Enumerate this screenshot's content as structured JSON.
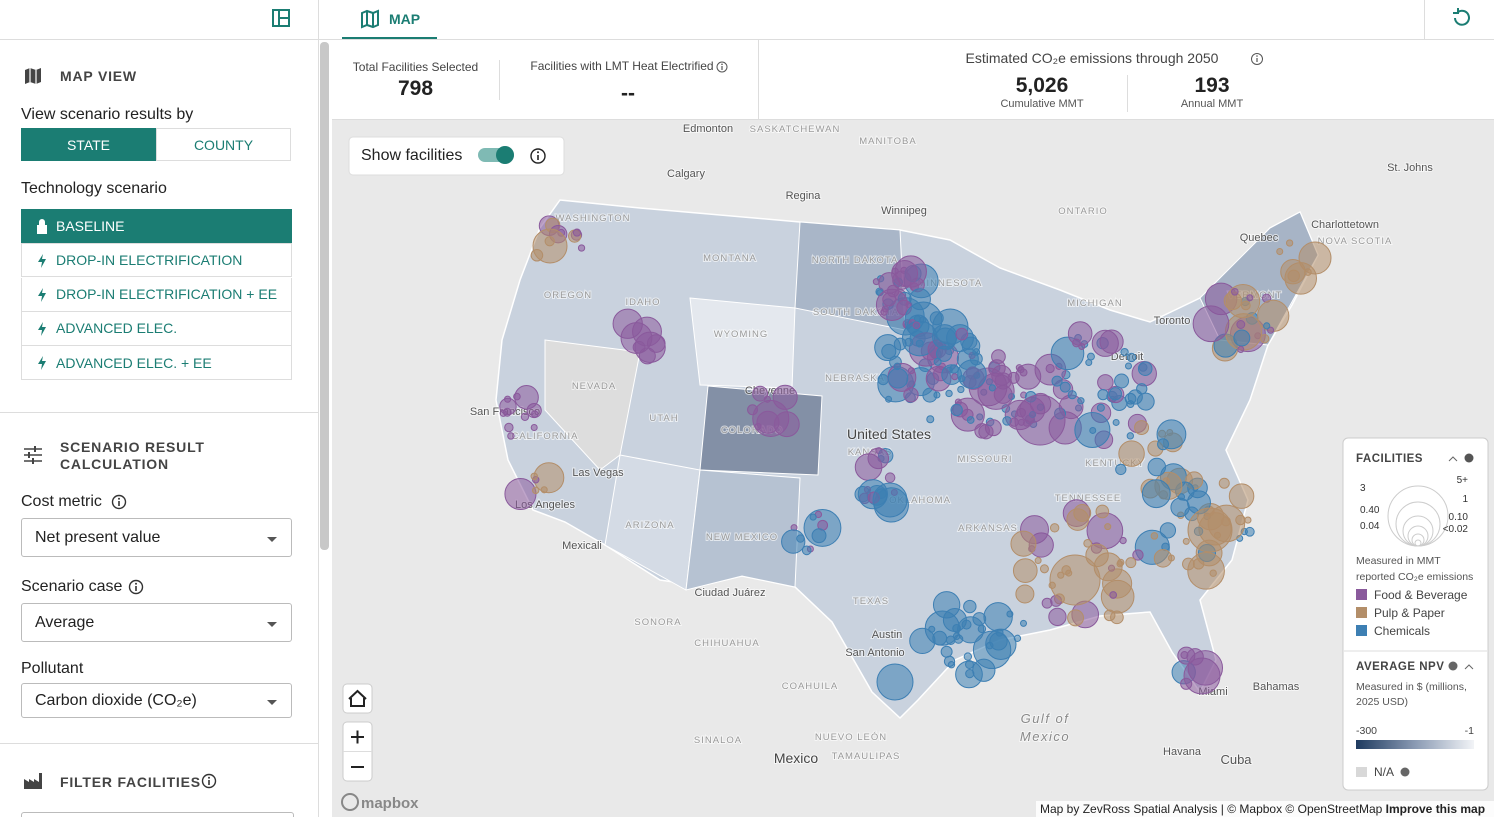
{
  "header": {
    "tab": "MAP"
  },
  "sidebar": {
    "map_view": {
      "title": "MAP VIEW",
      "view_by_label": "View scenario results by",
      "view_options": [
        "STATE",
        "COUNTY"
      ],
      "tech_label": "Technology scenario",
      "tech_options": [
        "BASELINE",
        "DROP-IN ELECTRIFICATION",
        "DROP-IN ELECTRIFICATION + EE",
        "ADVANCED ELEC.",
        "ADVANCED ELEC. + EE"
      ]
    },
    "calc": {
      "title": [
        "SCENARIO RESULT",
        "CALCULATION"
      ],
      "fields": [
        {
          "label": "Cost metric",
          "value": "Net present value"
        },
        {
          "label": "Scenario case",
          "value": "Average"
        },
        {
          "label": "Pollutant",
          "value": "Carbon dioxide (CO₂e)"
        }
      ]
    },
    "filter": {
      "title": "FILTER FACILITIES"
    }
  },
  "stats": {
    "total_label": "Total Facilities Selected",
    "total_value": "798",
    "lmt_label": "Facilities with LMT Heat Electrified",
    "lmt_value": "--",
    "emissions_title": "Estimated CO₂e emissions through 2050",
    "cumulative_value": "5,026",
    "cumulative_label": "Cumulative MMT",
    "annual_value": "193",
    "annual_label": "Annual MMT"
  },
  "map": {
    "toggle_label": "Show facilities",
    "labels": [
      "Edmonton",
      "SASKATCHEWAN",
      "MANITOBA",
      "Calgary",
      "Regina",
      "Winnipeg",
      "ONTARIO",
      "Quebec",
      "Charlottetown",
      "St. Johns",
      "NOVA SCOTIA",
      "WASHINGTON",
      "OREGON",
      "IDAHO",
      "MONTANA",
      "NORTH DAKOTA",
      "MINNESOTA",
      "WYOMING",
      "SOUTH DAKOTA",
      "MICHIGAN",
      "Toronto",
      "VERMONT",
      "NEVADA",
      "UTAH",
      "Cheyenne",
      "NEBRASKA",
      "Detroit",
      "San Francisco",
      "COLORADO",
      "United States",
      "KANSAS",
      "MISSOURI",
      "KENTUCKY",
      "CALIFORNIA",
      "Las Vegas",
      "Los Angeles",
      "ARIZONA",
      "NEW MEXICO",
      "OKLAHOMA",
      "ARKANSAS",
      "TENNESSEE",
      "Mexicali",
      "Ciudad Juárez",
      "TEXAS",
      "SONORA",
      "CHIHUAHUA",
      "Austin",
      "San Antonio",
      "COAHUILA",
      "NUEVO LEÓN",
      "TAMAULIPAS",
      "SINALOA",
      "Mexico",
      "Gulf of",
      "Mexico",
      "Havana",
      "Cuba",
      "Bahamas",
      "Miami"
    ],
    "logo": "mapbox",
    "attribution_prefix": "Map by",
    "attribution_author": "ZevRoss Spatial Analysis",
    "attribution_rest": "| © Mapbox © OpenStreetMap",
    "improve": "Improve this map"
  },
  "legend": {
    "facilities_title": "FACILITIES",
    "size_labels": [
      "3",
      "5+",
      "1",
      "0.40",
      "0.10",
      "0.04",
      "<0.02"
    ],
    "size_note": [
      "Measured in MMT",
      "reported CO₂e emissions"
    ],
    "categories": [
      {
        "name": "Food & Beverage",
        "color": "#8a5a9c"
      },
      {
        "name": "Pulp & Paper",
        "color": "#b38e69"
      },
      {
        "name": "Chemicals",
        "color": "#3d7fb3"
      }
    ],
    "npv_title": "AVERAGE NPV",
    "npv_note": [
      "Measured in $ (millions,",
      "2025 USD)"
    ],
    "npv_min": "-300",
    "npv_max": "-1",
    "na": "N/A"
  }
}
